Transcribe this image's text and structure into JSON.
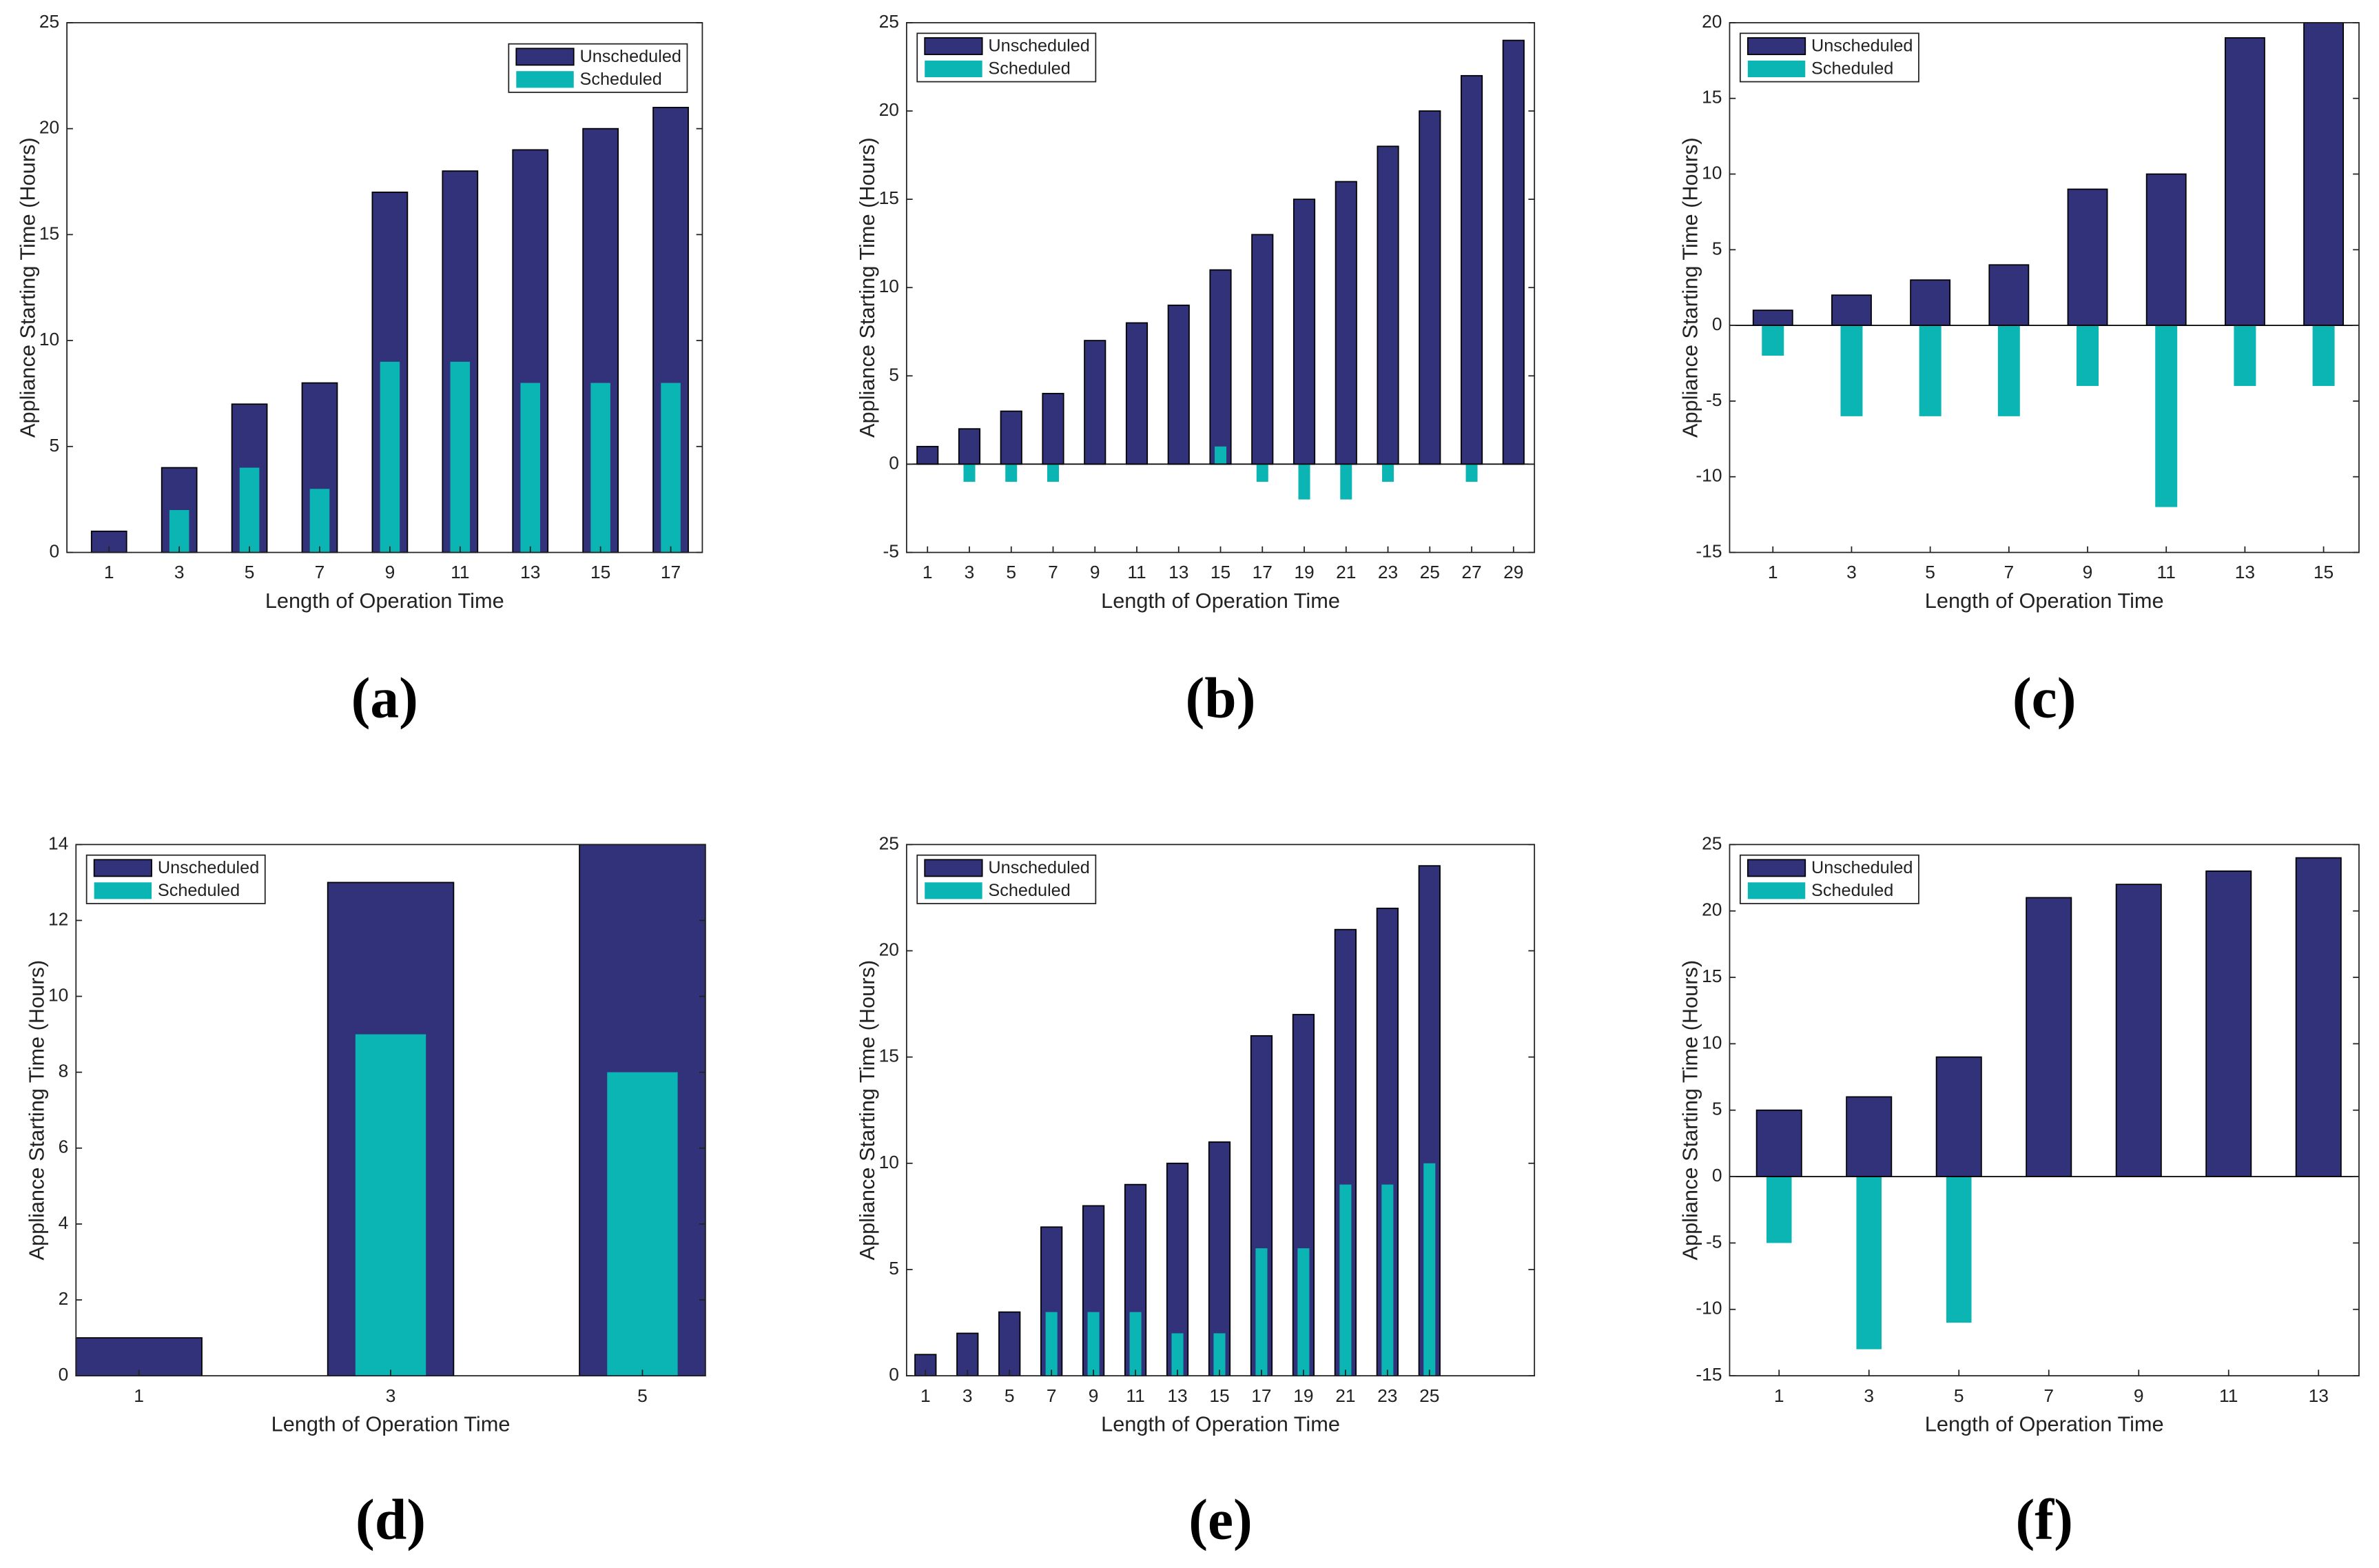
{
  "chart_data": [
    {
      "type": "bar",
      "panel": "(a)",
      "xlabel": "Length of Operation Time",
      "ylabel": "Appliance Starting Time (Hours)",
      "x": [
        1,
        3,
        5,
        7,
        9,
        11,
        13,
        15,
        17
      ],
      "xlim": [
        -0.2,
        17.9
      ],
      "xticks": [
        1,
        3,
        5,
        7,
        9,
        11,
        13,
        15,
        17
      ],
      "ylim": [
        0,
        25
      ],
      "yticks": [
        0,
        5,
        10,
        15,
        20,
        25
      ],
      "legend": "upper right",
      "series": [
        {
          "name": "Unscheduled",
          "color": "#32327b",
          "values": [
            1,
            4,
            7,
            8,
            17,
            18,
            19,
            20,
            21
          ]
        },
        {
          "name": "Scheduled",
          "color": "#0ab5b4",
          "values": [
            0,
            2,
            4,
            3,
            9,
            9,
            8,
            8,
            8
          ]
        }
      ]
    },
    {
      "type": "bar",
      "panel": "(b)",
      "xlabel": "Length of Operation Time",
      "ylabel": "Appliance Starting Time (Hours)",
      "x": [
        1,
        3,
        5,
        7,
        9,
        11,
        13,
        15,
        17,
        19,
        21,
        23,
        25,
        27,
        29
      ],
      "xlim": [
        0,
        30
      ],
      "xticks": [
        1,
        3,
        5,
        7,
        9,
        11,
        13,
        15,
        17,
        19,
        21,
        23,
        25,
        27,
        29
      ],
      "ylim": [
        -5,
        25
      ],
      "yticks": [
        -5,
        0,
        5,
        10,
        15,
        20,
        25
      ],
      "legend": "upper left",
      "series": [
        {
          "name": "Unscheduled",
          "color": "#32327b",
          "values": [
            1,
            2,
            3,
            4,
            7,
            8,
            9,
            11,
            13,
            15,
            16,
            18,
            20,
            22,
            24
          ]
        },
        {
          "name": "Scheduled",
          "color": "#0ab5b4",
          "values": [
            0,
            -1,
            -1,
            -1,
            0,
            0,
            0,
            1,
            -1,
            -2,
            -2,
            -1,
            0,
            -1,
            0
          ]
        }
      ]
    },
    {
      "type": "bar",
      "panel": "(c)",
      "xlabel": "Length of Operation Time",
      "ylabel": "Appliance Starting Time (Hours)",
      "x": [
        1,
        3,
        5,
        7,
        9,
        11,
        13,
        15
      ],
      "xlim": [
        -0.1,
        15.9
      ],
      "xticks": [
        1,
        3,
        5,
        7,
        9,
        11,
        13,
        15
      ],
      "ylim": [
        -15,
        20
      ],
      "yticks": [
        -15,
        -10,
        -5,
        0,
        5,
        10,
        15,
        20
      ],
      "legend": "upper left",
      "series": [
        {
          "name": "Unscheduled",
          "color": "#32327b",
          "values": [
            1,
            2,
            3,
            4,
            9,
            10,
            19,
            20
          ]
        },
        {
          "name": "Scheduled",
          "color": "#0ab5b4",
          "values": [
            -2,
            -6,
            -6,
            -6,
            -4,
            -12,
            -4,
            -4
          ]
        }
      ]
    },
    {
      "type": "bar",
      "panel": "(d)",
      "xlabel": "Length of Operation Time",
      "ylabel": "Appliance Starting Time (Hours)",
      "x": [
        1,
        3,
        5
      ],
      "xlim": [
        0.5,
        5.5
      ],
      "xticks": [
        1,
        3,
        5
      ],
      "ylim": [
        0,
        14
      ],
      "yticks": [
        0,
        2,
        4,
        6,
        8,
        10,
        12,
        14
      ],
      "legend": "upper left",
      "series": [
        {
          "name": "Unscheduled",
          "color": "#32327b",
          "values": [
            1,
            13,
            14
          ]
        },
        {
          "name": "Scheduled",
          "color": "#0ab5b4",
          "values": [
            0,
            9,
            8
          ]
        }
      ]
    },
    {
      "type": "bar",
      "panel": "(e)",
      "xlabel": "Length of Operation Time",
      "ylabel": "Appliance Starting Time (Hours)",
      "x": [
        1,
        3,
        5,
        7,
        9,
        11,
        13,
        15,
        17,
        19,
        21,
        23,
        25
      ],
      "xlim": [
        0.1,
        30
      ],
      "xticks": [
        1,
        3,
        5,
        7,
        9,
        11,
        13,
        15,
        17,
        19,
        21,
        23,
        25
      ],
      "ylim": [
        0,
        25
      ],
      "yticks": [
        0,
        5,
        10,
        15,
        20,
        25
      ],
      "legend": "upper left",
      "series": [
        {
          "name": "Unscheduled",
          "color": "#32327b",
          "values": [
            1,
            2,
            3,
            7,
            8,
            9,
            10,
            11,
            16,
            17,
            21,
            22,
            24
          ]
        },
        {
          "name": "Scheduled",
          "color": "#0ab5b4",
          "values": [
            0,
            0,
            0,
            3,
            3,
            3,
            2,
            2,
            6,
            6,
            9,
            9,
            10
          ]
        }
      ]
    },
    {
      "type": "bar",
      "panel": "(f)",
      "xlabel": "Length of Operation Time",
      "ylabel": "Appliance Starting Time (Hours)",
      "x": [
        1,
        3,
        5,
        7,
        9,
        11,
        13
      ],
      "xlim": [
        -0.1,
        13.9
      ],
      "xticks": [
        1,
        3,
        5,
        7,
        9,
        11,
        13
      ],
      "ylim": [
        -15,
        25
      ],
      "yticks": [
        -15,
        -10,
        -5,
        0,
        5,
        10,
        15,
        20,
        25
      ],
      "legend": "upper left",
      "series": [
        {
          "name": "Unscheduled",
          "color": "#32327b",
          "values": [
            5,
            6,
            9,
            21,
            22,
            23,
            24
          ]
        },
        {
          "name": "Scheduled",
          "color": "#0ab5b4",
          "values": [
            -5,
            -13,
            -11,
            0,
            0,
            0,
            0
          ]
        }
      ]
    }
  ]
}
